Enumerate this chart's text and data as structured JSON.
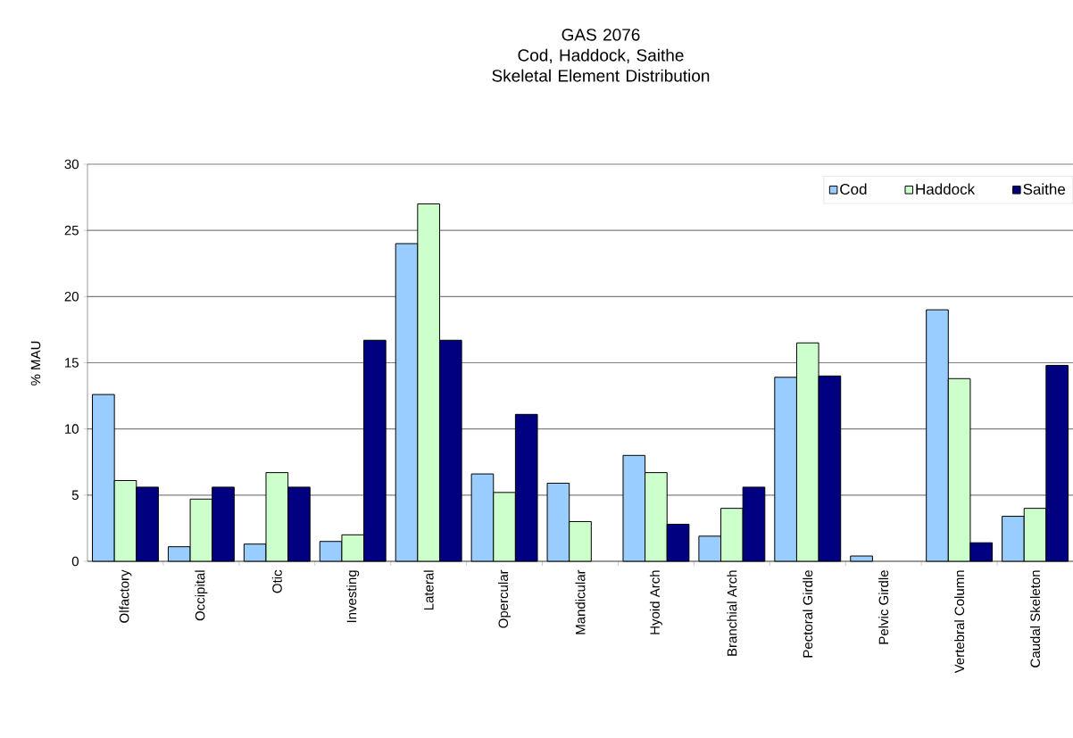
{
  "chart_data": {
    "type": "bar",
    "title": "GAS 2076",
    "subtitle": "Cod, Haddock, Saithe Skeletal Element Distribution",
    "ylabel": "% MAU",
    "categories": [
      "Olfactory",
      "Occipital",
      "Otic",
      "Investing",
      "Lateral",
      "Opercular",
      "Mandicular",
      "Hyoid Arch",
      "Branchial Arch",
      "Pectoral Girdle",
      "Pelvic Girdle",
      "Vertebral Column",
      "Caudal Skeleton"
    ],
    "series": [
      {
        "name": "Cod",
        "color": "#99ccff",
        "values": [
          12.6,
          1.1,
          1.3,
          1.5,
          24.0,
          6.6,
          5.9,
          8.0,
          1.9,
          13.9,
          0.4,
          19.0,
          3.4
        ]
      },
      {
        "name": "Haddock",
        "color": "#ccffcc",
        "values": [
          6.1,
          4.7,
          6.7,
          2.0,
          27.0,
          5.2,
          3.0,
          6.7,
          4.0,
          16.5,
          null,
          13.8,
          4.0
        ]
      },
      {
        "name": "Saithe",
        "color": "#000080",
        "values": [
          5.6,
          5.6,
          5.6,
          16.7,
          16.7,
          11.1,
          null,
          2.8,
          5.6,
          14.0,
          null,
          1.4,
          14.8
        ]
      }
    ],
    "ylim": [
      0,
      30
    ],
    "yticks": [
      0,
      5,
      10,
      15,
      20,
      25,
      30
    ],
    "grid": "y",
    "legend": "top right"
  }
}
